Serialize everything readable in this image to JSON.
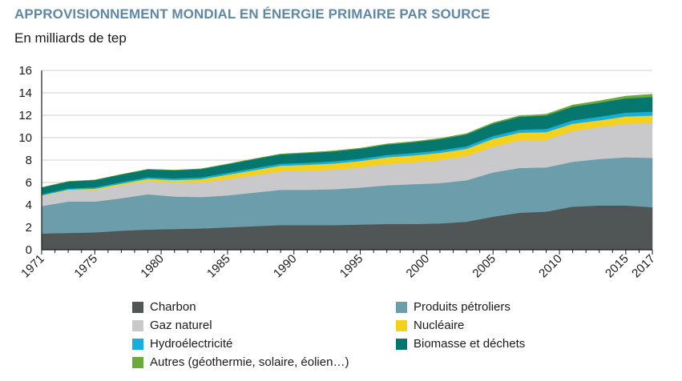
{
  "title": "APPROVISIONNEMENT MONDIAL EN ÉNERGIE PRIMAIRE PAR SOURCE",
  "subtitle": "En milliards de tep",
  "chart_data": {
    "type": "area",
    "stacked": true,
    "title": "APPROVISIONNEMENT MONDIAL EN ÉNERGIE PRIMAIRE PAR SOURCE",
    "ylabel": "En milliards de tep",
    "xlabel": "",
    "ylim": [
      0,
      16
    ],
    "yticks": [
      0,
      2,
      4,
      6,
      8,
      10,
      12,
      14,
      16
    ],
    "xlim": [
      1971,
      2017
    ],
    "xticks": [
      1971,
      1975,
      1980,
      1985,
      1990,
      1995,
      2000,
      2005,
      2010,
      2015,
      2017
    ],
    "grid": true,
    "legend_position": "bottom",
    "x": [
      1971,
      1973,
      1975,
      1977,
      1979,
      1981,
      1983,
      1985,
      1987,
      1989,
      1991,
      1993,
      1995,
      1997,
      1999,
      2001,
      2003,
      2005,
      2007,
      2009,
      2011,
      2013,
      2015,
      2017
    ],
    "series": [
      {
        "name": "Charbon",
        "color": "#505556",
        "values": [
          1.45,
          1.5,
          1.55,
          1.7,
          1.8,
          1.85,
          1.9,
          2.0,
          2.1,
          2.2,
          2.2,
          2.2,
          2.25,
          2.3,
          2.3,
          2.35,
          2.5,
          2.95,
          3.3,
          3.4,
          3.85,
          3.95,
          3.95,
          3.8
        ]
      },
      {
        "name": "Produits pétroliers",
        "color": "#6b9dab",
        "values": [
          2.45,
          2.8,
          2.75,
          2.9,
          3.15,
          2.9,
          2.8,
          2.85,
          3.0,
          3.15,
          3.15,
          3.2,
          3.3,
          3.45,
          3.55,
          3.6,
          3.7,
          3.95,
          4.0,
          3.95,
          4.0,
          4.15,
          4.3,
          4.4
        ]
      },
      {
        "name": "Gaz naturel",
        "color": "#c9c9cc",
        "values": [
          0.9,
          1.0,
          1.05,
          1.15,
          1.2,
          1.25,
          1.3,
          1.45,
          1.55,
          1.65,
          1.7,
          1.75,
          1.8,
          1.9,
          1.95,
          2.05,
          2.15,
          2.3,
          2.45,
          2.45,
          2.75,
          2.85,
          3.0,
          3.1
        ]
      },
      {
        "name": "Nucléaire",
        "color": "#f4d11f",
        "values": [
          0.05,
          0.07,
          0.1,
          0.15,
          0.18,
          0.22,
          0.3,
          0.4,
          0.45,
          0.5,
          0.53,
          0.55,
          0.57,
          0.6,
          0.62,
          0.65,
          0.66,
          0.7,
          0.7,
          0.7,
          0.65,
          0.6,
          0.65,
          0.68
        ]
      },
      {
        "name": "Hydroélectricité",
        "color": "#17aede",
        "values": [
          0.1,
          0.1,
          0.12,
          0.13,
          0.14,
          0.15,
          0.16,
          0.17,
          0.18,
          0.18,
          0.19,
          0.2,
          0.2,
          0.21,
          0.22,
          0.22,
          0.23,
          0.25,
          0.26,
          0.28,
          0.3,
          0.32,
          0.34,
          0.35
        ]
      },
      {
        "name": "Biomasse et déchets",
        "color": "#06776e",
        "values": [
          0.6,
          0.62,
          0.65,
          0.68,
          0.7,
          0.72,
          0.74,
          0.76,
          0.8,
          0.83,
          0.86,
          0.88,
          0.9,
          0.93,
          0.96,
          1.0,
          1.05,
          1.1,
          1.15,
          1.2,
          1.22,
          1.25,
          1.27,
          1.3
        ]
      },
      {
        "name": "Autres (géothermie, solaire, éolien…)",
        "color": "#69ab3a",
        "values": [
          0.01,
          0.01,
          0.01,
          0.02,
          0.02,
          0.02,
          0.03,
          0.03,
          0.04,
          0.04,
          0.05,
          0.05,
          0.05,
          0.06,
          0.06,
          0.07,
          0.08,
          0.09,
          0.1,
          0.12,
          0.15,
          0.17,
          0.2,
          0.25
        ]
      }
    ]
  },
  "legend": {
    "items": [
      {
        "label": "Charbon",
        "color": "#505556"
      },
      {
        "label": "Produits pétroliers",
        "color": "#6b9dab"
      },
      {
        "label": "Gaz naturel",
        "color": "#c9c9cc"
      },
      {
        "label": "Nucléaire",
        "color": "#f4d11f"
      },
      {
        "label": "Hydroélectricité",
        "color": "#17aede"
      },
      {
        "label": "Biomasse et déchets",
        "color": "#06776e"
      },
      {
        "label": "Autres (géothermie, solaire, éolien…)",
        "color": "#69ab3a"
      }
    ]
  }
}
